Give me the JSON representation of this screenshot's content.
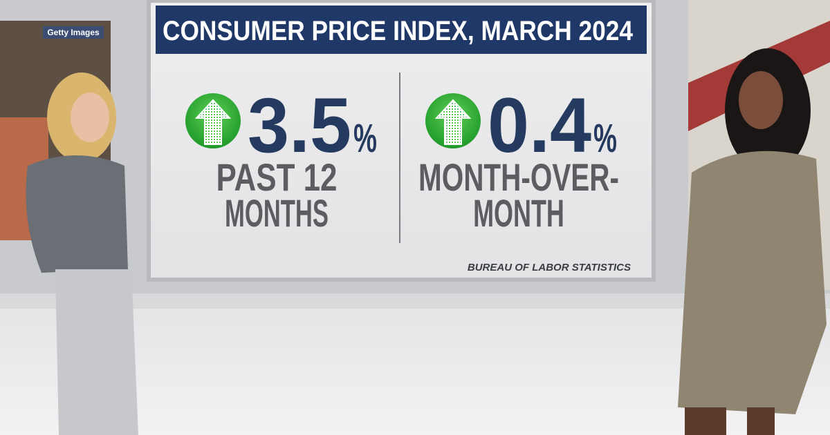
{
  "watermark": "Getty Images",
  "board": {
    "title": "CONSUMER PRICE INDEX, MARCH 2024",
    "stats": [
      {
        "number": "3.5",
        "unit": "%",
        "label_lines": [
          "PAST 12",
          "MONTHS"
        ]
      },
      {
        "number": "0.4",
        "unit": "%",
        "label_lines": [
          "MONTH-OVER-",
          "MONTH"
        ]
      }
    ],
    "source": "BUREAU OF LABOR STATISTICS"
  }
}
